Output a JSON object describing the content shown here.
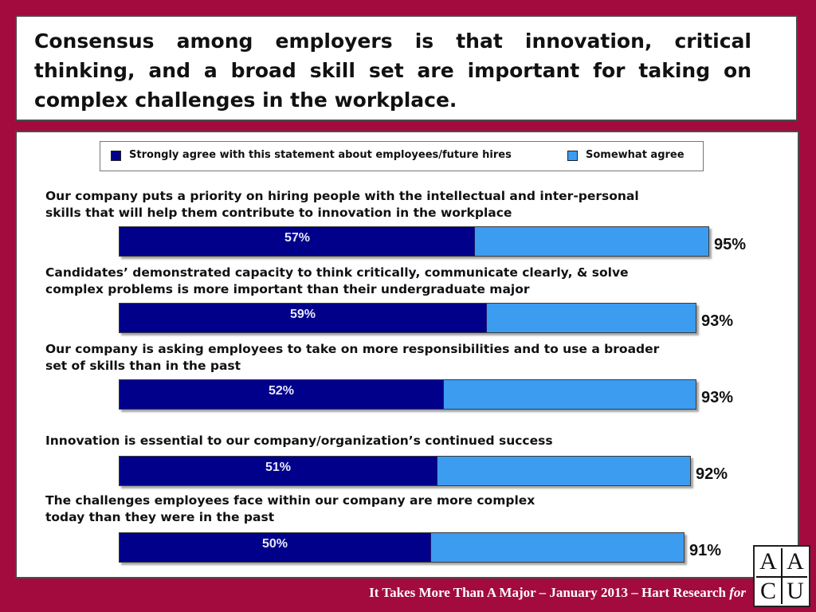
{
  "title": "Consensus among employers is that innovation, critical thinking, and a broad skill set are important for taking on complex challenges in the workplace.",
  "legend": {
    "strong": "Strongly agree with this statement about employees/future hires",
    "somewhat": "Somewhat agree"
  },
  "colors": {
    "strong": "#00008b",
    "somewhat": "#3c9cf0",
    "background": "#a30b3e"
  },
  "chart_data": {
    "type": "bar",
    "orientation": "horizontal",
    "stacked": true,
    "categories": [
      {
        "lines": [
          "Our company puts a priority on hiring people with the intellectual and inter-personal",
          "skills that will help them contribute to innovation in the workplace"
        ],
        "strong": 57,
        "strong_label": "57%",
        "total": 95,
        "total_label": "95%"
      },
      {
        "lines": [
          "Candidates’ demonstrated capacity to think critically, communicate clearly,  & solve",
          "complex problems is more important than their undergraduate major"
        ],
        "strong": 59,
        "strong_label": "59%",
        "total": 93,
        "total_label": "93%"
      },
      {
        "lines": [
          "Our company is asking employees to take on more responsibilities and to use a broader",
          "set of skills than in the past"
        ],
        "strong": 52,
        "strong_label": "52%",
        "total": 93,
        "total_label": "93%"
      },
      {
        "lines": [
          "Innovation is essential to our company/organization’s continued success"
        ],
        "strong": 51,
        "strong_label": "51%",
        "total": 92,
        "total_label": "92%"
      },
      {
        "lines": [
          "The challenges employees face within our company are more complex",
          "today than they were in the past"
        ],
        "strong": 50,
        "strong_label": "50%",
        "total": 91,
        "total_label": "91%"
      }
    ],
    "series": [
      {
        "name": "Strongly agree with this statement about employees/future hires"
      },
      {
        "name": "Somewhat agree"
      }
    ],
    "xlim": [
      0,
      100
    ],
    "legend_position": "top"
  },
  "footer": {
    "text": "It Takes More Than A Major – January 2013 – Hart Research",
    "italic": "for"
  },
  "logo": {
    "letters": [
      "A",
      "A",
      "C",
      "U"
    ]
  }
}
